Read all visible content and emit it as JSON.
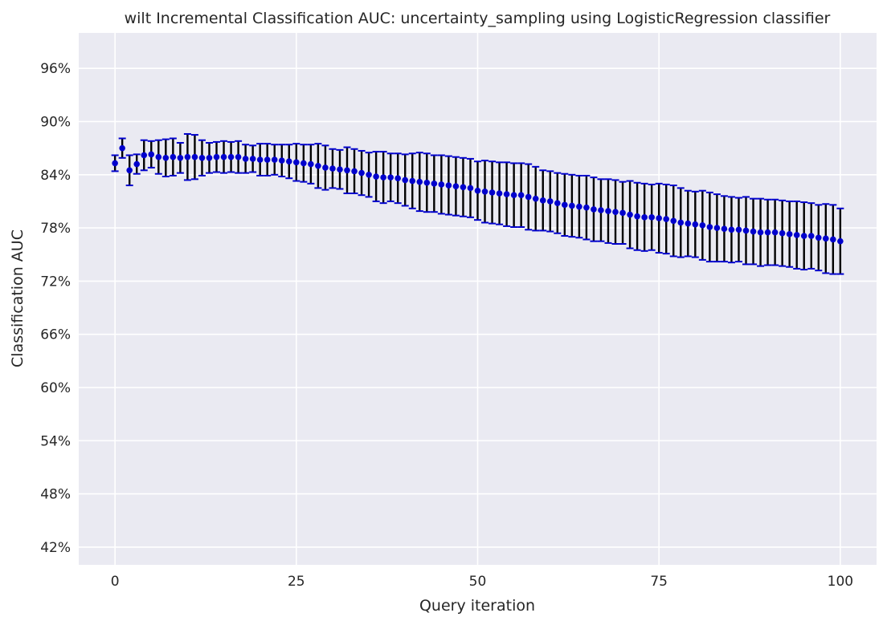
{
  "chart_data": {
    "type": "scatter",
    "title": "wilt Incremental Classification AUC: uncertainty_sampling using LogisticRegression classifier",
    "xlabel": "Query iteration",
    "ylabel": "Classification AUC",
    "xlim": [
      -5,
      105
    ],
    "ylim": [
      0.4,
      1.0
    ],
    "xticks": [
      0,
      25,
      50,
      75,
      100
    ],
    "xtick_labels": [
      "0",
      "25",
      "50",
      "75",
      "100"
    ],
    "yticks": [
      0.42,
      0.48,
      0.54,
      0.6,
      0.66,
      0.72,
      0.78,
      0.84,
      0.9,
      0.96
    ],
    "ytick_labels": [
      "42%",
      "48%",
      "54%",
      "60%",
      "66%",
      "72%",
      "78%",
      "84%",
      "90%",
      "96%"
    ],
    "grid": true,
    "background": "#eaeaf2",
    "grid_color": "#ffffff",
    "marker_color": "#0000cd",
    "errorbar_color": "#000000",
    "cap_color": "#0000cd",
    "series": [
      {
        "x": [
          0,
          1,
          2,
          3,
          4,
          5,
          6,
          7,
          8,
          9,
          10,
          11,
          12,
          13,
          14,
          15,
          16,
          17,
          18,
          19,
          20,
          21,
          22,
          23,
          24,
          25,
          26,
          27,
          28,
          29,
          30,
          31,
          32,
          33,
          34,
          35,
          36,
          37,
          38,
          39,
          40,
          41,
          42,
          43,
          44,
          45,
          46,
          47,
          48,
          49,
          50,
          51,
          52,
          53,
          54,
          55,
          56,
          57,
          58,
          59,
          60,
          61,
          62,
          63,
          64,
          65,
          66,
          67,
          68,
          69,
          70,
          71,
          72,
          73,
          74,
          75,
          76,
          77,
          78,
          79,
          80,
          81,
          82,
          83,
          84,
          85,
          86,
          87,
          88,
          89,
          90,
          91,
          92,
          93,
          94,
          95,
          96,
          97,
          98,
          99,
          100
        ],
        "y": [
          0.853,
          0.87,
          0.845,
          0.852,
          0.862,
          0.863,
          0.86,
          0.859,
          0.86,
          0.859,
          0.86,
          0.86,
          0.859,
          0.859,
          0.86,
          0.86,
          0.86,
          0.86,
          0.858,
          0.858,
          0.857,
          0.857,
          0.857,
          0.856,
          0.855,
          0.854,
          0.853,
          0.852,
          0.85,
          0.848,
          0.847,
          0.846,
          0.845,
          0.844,
          0.842,
          0.84,
          0.838,
          0.837,
          0.837,
          0.836,
          0.834,
          0.833,
          0.832,
          0.831,
          0.83,
          0.829,
          0.828,
          0.827,
          0.826,
          0.825,
          0.822,
          0.821,
          0.82,
          0.819,
          0.818,
          0.817,
          0.817,
          0.815,
          0.813,
          0.811,
          0.81,
          0.808,
          0.806,
          0.805,
          0.804,
          0.803,
          0.801,
          0.8,
          0.799,
          0.798,
          0.797,
          0.795,
          0.793,
          0.792,
          0.792,
          0.791,
          0.79,
          0.788,
          0.786,
          0.785,
          0.784,
          0.783,
          0.781,
          0.78,
          0.779,
          0.778,
          0.778,
          0.777,
          0.776,
          0.775,
          0.775,
          0.775,
          0.774,
          0.773,
          0.772,
          0.771,
          0.771,
          0.769,
          0.768,
          0.767,
          0.765
        ],
        "err": [
          0.009,
          0.011,
          0.017,
          0.011,
          0.017,
          0.015,
          0.019,
          0.021,
          0.021,
          0.017,
          0.026,
          0.025,
          0.02,
          0.017,
          0.017,
          0.018,
          0.017,
          0.018,
          0.016,
          0.015,
          0.018,
          0.018,
          0.017,
          0.018,
          0.019,
          0.021,
          0.021,
          0.022,
          0.025,
          0.025,
          0.022,
          0.022,
          0.026,
          0.025,
          0.025,
          0.025,
          0.028,
          0.029,
          0.027,
          0.028,
          0.029,
          0.031,
          0.033,
          0.033,
          0.032,
          0.033,
          0.033,
          0.033,
          0.033,
          0.033,
          0.033,
          0.035,
          0.035,
          0.035,
          0.036,
          0.036,
          0.036,
          0.037,
          0.036,
          0.034,
          0.034,
          0.034,
          0.035,
          0.035,
          0.035,
          0.036,
          0.036,
          0.035,
          0.036,
          0.036,
          0.035,
          0.038,
          0.038,
          0.038,
          0.037,
          0.039,
          0.039,
          0.04,
          0.039,
          0.037,
          0.037,
          0.039,
          0.039,
          0.038,
          0.037,
          0.037,
          0.036,
          0.038,
          0.037,
          0.038,
          0.037,
          0.037,
          0.037,
          0.037,
          0.038,
          0.038,
          0.037,
          0.037,
          0.039,
          0.039,
          0.037
        ]
      }
    ]
  }
}
